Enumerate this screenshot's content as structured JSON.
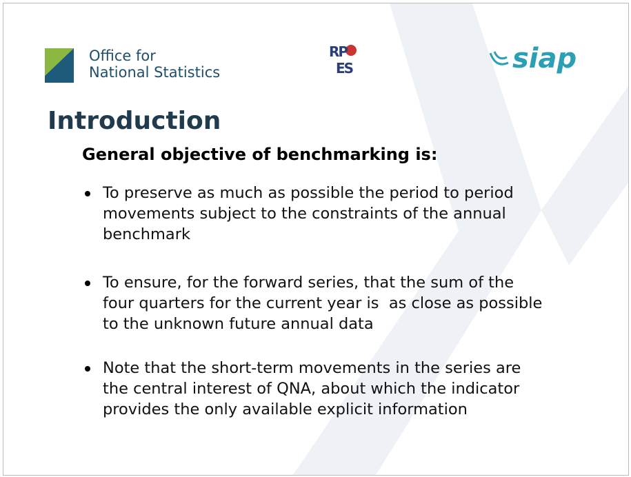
{
  "header": {
    "logo_ons": [
      "Office for",
      "National Statistics"
    ],
    "logo_rpes": [
      "RP",
      "ES"
    ],
    "logo_siap": "siap"
  },
  "title": "Introduction",
  "subtitle": "General objective of benchmarking is:",
  "bullets": [
    [
      "To preserve as much as possible the period to period",
      "movements subject to the constraints of the annual",
      "benchmark"
    ],
    [
      "To ensure, for the forward series, that the sum of the",
      "four quarters for the current year is  as close as possible",
      "to the unknown future annual data"
    ],
    [
      "Note that the short-term movements in the series are",
      "the central interest of QNA, about which the indicator",
      "provides the only available explicit information"
    ]
  ]
}
